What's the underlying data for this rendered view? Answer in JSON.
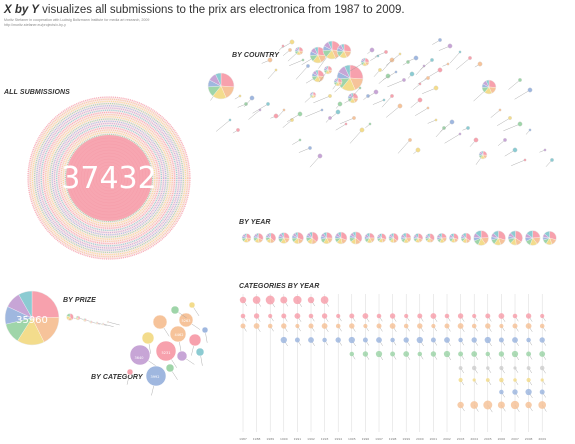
{
  "title": {
    "emphasis": "X by Y",
    "rest": " visualizes all submissions to the prix ars electronica from 1987 to 2009."
  },
  "credit": {
    "line1": "Moritz Stefaner in cooperation with Ludwig Boltzmann Institute for media art research, 2009",
    "line2": "http://moritz.stefaner.eu/projects/x-by-y"
  },
  "sections": {
    "all": "ALL SUBMISSIONS",
    "country": "BY COUNTRY",
    "year": "BY YEAR",
    "prize": "BY PRIZE",
    "category": "BY CATEGORY",
    "catyear": "CATEGORIES BY YEAR"
  },
  "totals": {
    "all_submissions": "37432",
    "no_prize": "35960"
  },
  "category_labels": {
    "c1": "3640",
    "c2": "5231",
    "c3": "4462",
    "c4": "3992",
    "c5": "5263"
  },
  "years": [
    "1987",
    "1988",
    "1989",
    "1990",
    "1991",
    "1992",
    "1993",
    "1994",
    "1995",
    "1996",
    "1997",
    "1998",
    "1999",
    "2000",
    "2001",
    "2002",
    "2003",
    "2004",
    "2005",
    "2006",
    "2007",
    "2008",
    "2009"
  ],
  "colors": {
    "pink": "#f7a1ad",
    "orange": "#f6c39a",
    "yellow": "#f3dc8c",
    "green": "#9fd5a9",
    "blue": "#9fb7df",
    "purple": "#c7a5d6",
    "teal": "#8ccbd2",
    "grey": "#cfcfcf"
  }
}
